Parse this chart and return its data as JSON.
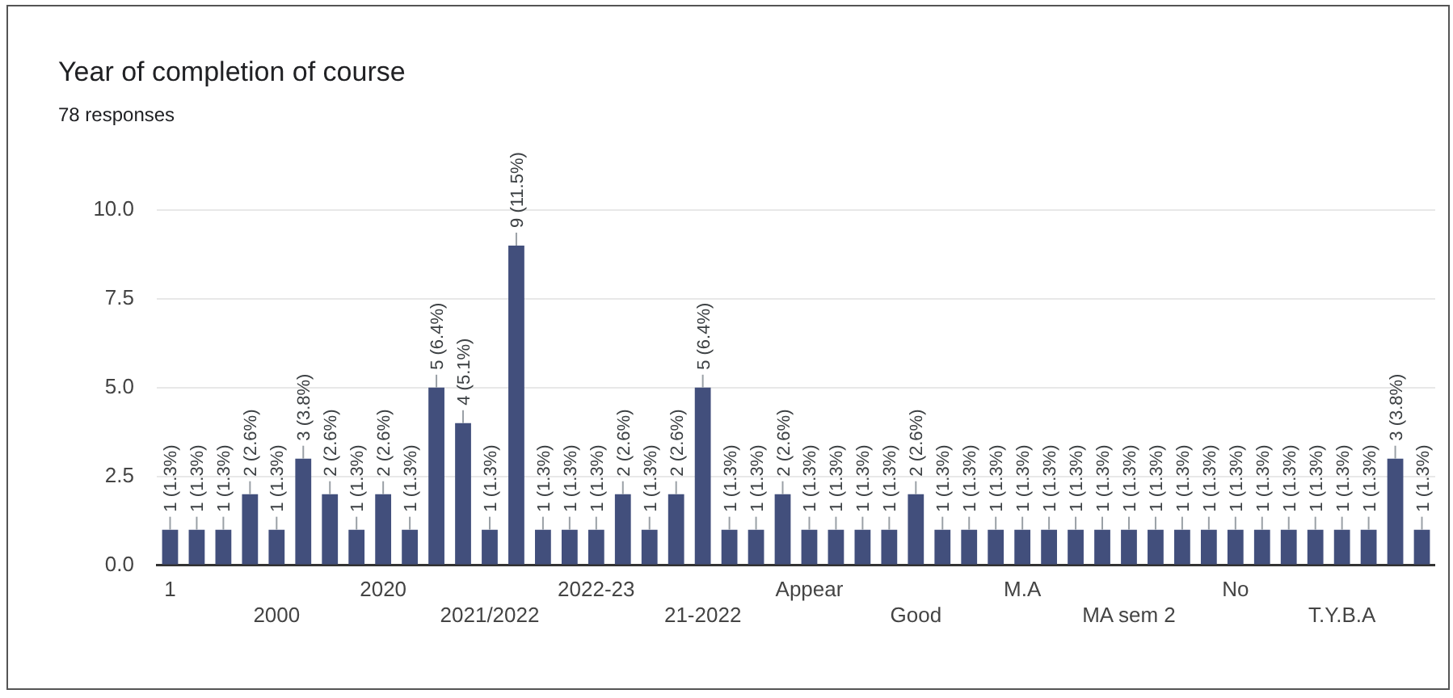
{
  "chart_data": {
    "type": "bar",
    "title": "Year of completion of course",
    "subtitle": "78 responses",
    "categories": [
      "1",
      null,
      null,
      null,
      "2000",
      null,
      null,
      null,
      "2020",
      null,
      null,
      null,
      "2021/2022",
      null,
      null,
      null,
      "2022-23",
      null,
      null,
      null,
      "21-2022",
      null,
      null,
      null,
      "Appear",
      null,
      null,
      null,
      "Good",
      null,
      null,
      null,
      "M.A",
      null,
      null,
      null,
      "MA sem 2",
      null,
      null,
      null,
      "No",
      null,
      null,
      null,
      "T.Y.B.A",
      null,
      null,
      null
    ],
    "values": [
      1,
      1,
      1,
      2,
      1,
      3,
      2,
      1,
      2,
      1,
      5,
      4,
      1,
      9,
      1,
      1,
      1,
      2,
      1,
      2,
      5,
      1,
      1,
      2,
      1,
      1,
      1,
      1,
      2,
      1,
      1,
      1,
      1,
      1,
      1,
      1,
      1,
      1,
      1,
      1,
      1,
      1,
      1,
      1,
      1,
      1,
      3,
      1
    ],
    "value_labels": [
      "1 (1.3%)",
      "1 (1.3%)",
      "1 (1.3%)",
      "2 (2.6%)",
      "1 (1.3%)",
      "3 (3.8%)",
      "2 (2.6%)",
      "1 (1.3%)",
      "2 (2.6%)",
      "1 (1.3%)",
      "5 (6.4%)",
      "4 (5.1%)",
      "1 (1.3%)",
      "9 (11.5%)",
      "1 (1.3%)",
      "1 (1.3%)",
      "1 (1.3%)",
      "2 (2.6%)",
      "1 (1.3%)",
      "2 (2.6%)",
      "5 (6.4%)",
      "1 (1.3%)",
      "1 (1.3%)",
      "2 (2.6%)",
      "1 (1.3%)",
      "1 (1.3%)",
      "1 (1.3%)",
      "1 (1.3%)",
      "2 (2.6%)",
      "1 (1.3%)",
      "1 (1.3%)",
      "1 (1.3%)",
      "1 (1.3%)",
      "1 (1.3%)",
      "1 (1.3%)",
      "1 (1.3%)",
      "1 (1.3%)",
      "1 (1.3%)",
      "1 (1.3%)",
      "1 (1.3%)",
      "1 (1.3%)",
      "1 (1.3%)",
      "1 (1.3%)",
      "1 (1.3%)",
      "1 (1.3%)",
      "1 (1.3%)",
      "3 (3.8%)",
      "1 (1.3%)"
    ],
    "color": "#424f7c",
    "ylim": [
      0,
      10
    ],
    "yticks": [
      {
        "value": 0,
        "label": "0.0"
      },
      {
        "value": 2.5,
        "label": "2.5"
      },
      {
        "value": 5,
        "label": "5.0"
      },
      {
        "value": 7.5,
        "label": "7.5"
      },
      {
        "value": 10,
        "label": "10.0"
      }
    ],
    "grid": "y"
  }
}
